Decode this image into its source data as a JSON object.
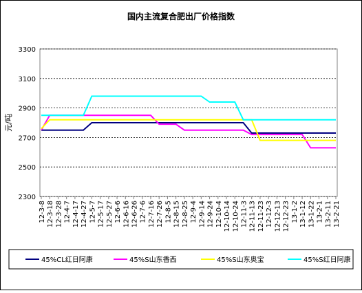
{
  "chart_data": {
    "type": "line",
    "title": "国内主流复合肥出厂价格指数",
    "y_label": "元/吨",
    "categories": [
      "12-3-8",
      "12-3-18",
      "12-3-28",
      "12-4-7",
      "12-4-17",
      "12-4-27",
      "12-5-7",
      "12-5-17",
      "12-5-27",
      "12-6-6",
      "12-6-16",
      "12-6-26",
      "12-7-6",
      "12-7-16",
      "12-7-26",
      "12-8-5",
      "12-8-15",
      "12-8-25",
      "12-9-4",
      "12-9-14",
      "12-9-24",
      "12-10-4",
      "12-10-14",
      "12-10-24",
      "12-11-3",
      "12-11-13",
      "12-11-23",
      "12-12-3",
      "12-12-13",
      "12-12-23",
      "13-1-2",
      "13-1-12",
      "13-1-22",
      "13-2-1",
      "13-2-11",
      "13-2-21"
    ],
    "series": [
      {
        "name": "45%CL红日阿康",
        "color": "#000080",
        "values": [
          2750,
          2750,
          2750,
          2750,
          2750,
          2750,
          2800,
          2800,
          2800,
          2800,
          2800,
          2800,
          2800,
          2800,
          2800,
          2800,
          2800,
          2800,
          2800,
          2800,
          2800,
          2800,
          2800,
          2800,
          2800,
          2730,
          2730,
          2730,
          2730,
          2730,
          2730,
          2730,
          2730,
          2730,
          2730,
          2730
        ]
      },
      {
        "name": "45%S山东香西",
        "color": "#ff00ff",
        "values": [
          2750,
          2850,
          2850,
          2850,
          2850,
          2850,
          2850,
          2850,
          2850,
          2850,
          2850,
          2850,
          2850,
          2850,
          2790,
          2790,
          2790,
          2750,
          2750,
          2750,
          2750,
          2750,
          2750,
          2750,
          2750,
          2720,
          2720,
          2720,
          2720,
          2720,
          2720,
          2720,
          2630,
          2630,
          2630,
          2630
        ]
      },
      {
        "name": "45%S山东奥宝",
        "color": "#ffff00",
        "values": [
          2760,
          2820,
          2820,
          2820,
          2820,
          2820,
          2820,
          2820,
          2820,
          2820,
          2820,
          2820,
          2820,
          2820,
          2820,
          2820,
          2820,
          2820,
          2820,
          2820,
          2820,
          2820,
          2820,
          2820,
          2820,
          2820,
          2680,
          2680,
          2680,
          2680,
          2680,
          2680,
          2680,
          2680,
          2680,
          2680
        ]
      },
      {
        "name": "45%S红日阿康",
        "color": "#00ffff",
        "values": [
          2850,
          2850,
          2850,
          2850,
          2850,
          2850,
          2980,
          2980,
          2980,
          2980,
          2980,
          2980,
          2980,
          2980,
          2980,
          2980,
          2980,
          2980,
          2980,
          2980,
          2940,
          2940,
          2940,
          2940,
          2820,
          2820,
          2820,
          2820,
          2820,
          2820,
          2820,
          2820,
          2820,
          2820,
          2820,
          2820
        ]
      }
    ],
    "ylim": [
      2300,
      3300
    ],
    "yticks": [
      2300,
      2500,
      2700,
      2900,
      3100,
      3300
    ],
    "grid": true,
    "legend": "bottom"
  }
}
